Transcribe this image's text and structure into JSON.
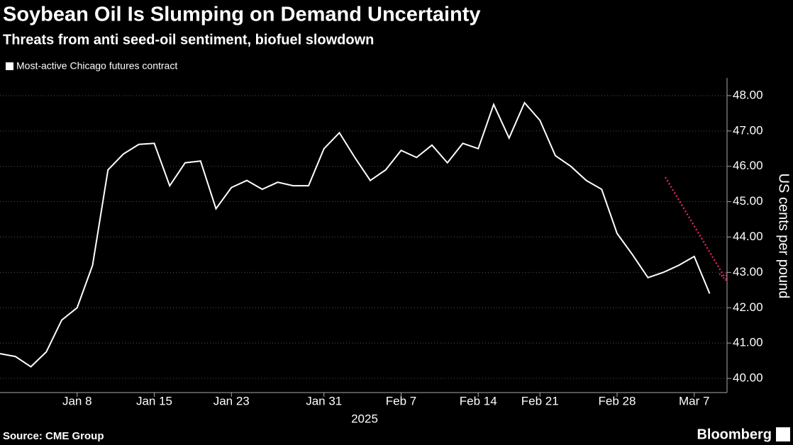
{
  "chart_data": {
    "type": "line",
    "title": "Soybean Oil Is Slumping on Demand Uncertainty",
    "subtitle": "Threats from anti seed-oil sentiment, biofuel slowdown",
    "xlabel": "2025",
    "ylabel": "US cents per pound",
    "source": "Source: CME Group",
    "brand": "Bloomberg",
    "categories": [
      null,
      null,
      null,
      null,
      null,
      "Jan 8",
      null,
      null,
      null,
      null,
      "Jan 15",
      null,
      null,
      null,
      null,
      "Jan 23",
      null,
      null,
      null,
      null,
      null,
      "Jan 31",
      null,
      null,
      null,
      null,
      "Feb 7",
      null,
      null,
      null,
      null,
      "Feb 14",
      null,
      null,
      null,
      "Feb 21",
      null,
      null,
      null,
      null,
      "Feb 28",
      null,
      null,
      null,
      null,
      "Mar 7",
      null
    ],
    "series": [
      {
        "name": "Most-active Chicago futures contract",
        "color": "#ffffff",
        "values": [
          40.7,
          40.62,
          40.33,
          40.75,
          41.65,
          42.0,
          43.2,
          45.9,
          46.35,
          46.62,
          46.65,
          45.45,
          46.1,
          46.15,
          44.8,
          45.4,
          45.6,
          45.35,
          45.55,
          45.45,
          45.45,
          46.5,
          46.95,
          46.25,
          45.6,
          45.9,
          46.45,
          46.25,
          46.6,
          46.1,
          46.65,
          46.5,
          47.75,
          46.8,
          47.8,
          47.3,
          46.3,
          46.0,
          45.6,
          45.35,
          44.1,
          43.5,
          42.85,
          43.0,
          43.2,
          43.45,
          42.4
        ]
      }
    ],
    "ylim": [
      39.6,
      48.5
    ],
    "yticks": [
      {
        "value": 40,
        "label": "40.00"
      },
      {
        "value": 41,
        "label": "41.00"
      },
      {
        "value": 42,
        "label": "42.00"
      },
      {
        "value": 43,
        "label": "43.00"
      },
      {
        "value": 44,
        "label": "44.00"
      },
      {
        "value": 45,
        "label": "45.00"
      },
      {
        "value": 46,
        "label": "46.00"
      },
      {
        "value": 47,
        "label": "47.00"
      },
      {
        "value": 48,
        "label": "48.00"
      }
    ],
    "grid": true
  }
}
